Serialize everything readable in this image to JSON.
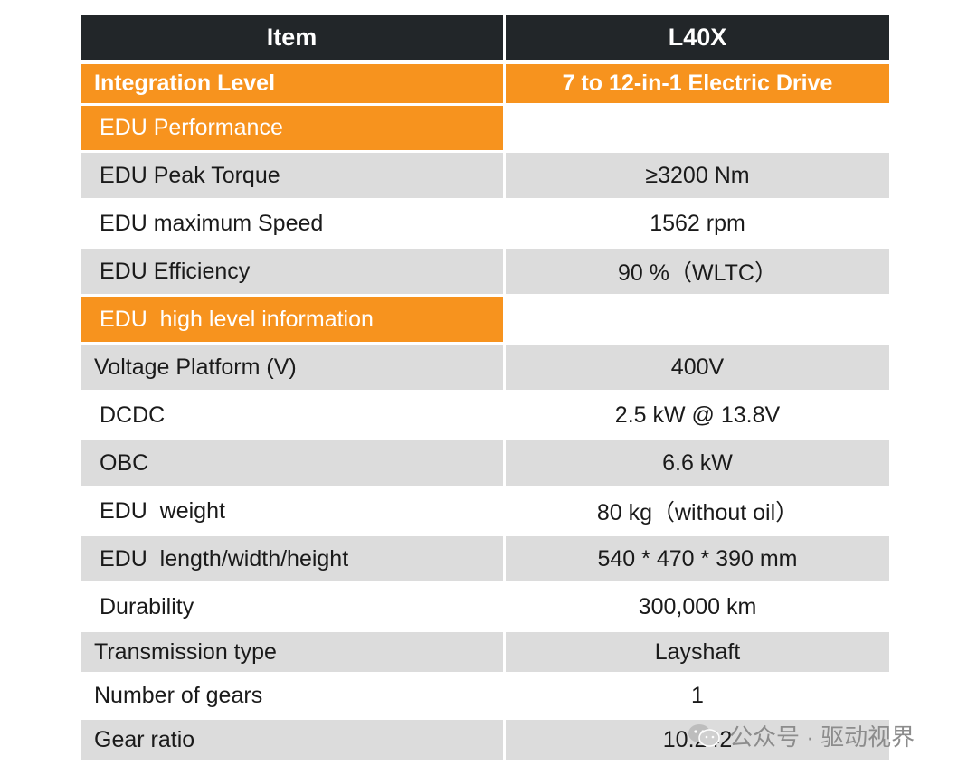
{
  "table": {
    "header": {
      "item": "Item",
      "model": "L40X"
    },
    "integration": {
      "label": "Integration Level",
      "value": "7 to 12-in-1 Electric Drive"
    },
    "section_performance": "EDU Performance",
    "performance_rows": [
      {
        "label": "EDU Peak Torque",
        "value": "≥3200 Nm"
      },
      {
        "label": "EDU maximum Speed",
        "value": "1562 rpm"
      },
      {
        "label": "EDU Efficiency",
        "value": "90 %（WLTC）"
      }
    ],
    "section_info": "EDU  high level information",
    "info_rows": [
      {
        "label": "Voltage Platform (V)",
        "value": "400V"
      },
      {
        "label": "DCDC",
        "value": "2.5 kW @ 13.8V"
      },
      {
        "label": "OBC",
        "value": "6.6 kW"
      },
      {
        "label": "EDU  weight",
        "value": "80 kg（without oil）"
      },
      {
        "label": "EDU  length/width/height",
        "value": "540 * 470 * 390 mm"
      },
      {
        "label": "Durability",
        "value": "300,000 km"
      },
      {
        "label": "Transmission type",
        "value": "Layshaft"
      },
      {
        "label": "Number of gears",
        "value": "1"
      },
      {
        "label": "Gear ratio",
        "value": "10.242"
      }
    ]
  },
  "watermark": {
    "text": "公众号 · 驱动视界",
    "icon": "wechat-icon"
  },
  "colors": {
    "header_bg": "#222629",
    "accent_orange": "#f7931e",
    "row_gray": "#dcdcdc"
  }
}
